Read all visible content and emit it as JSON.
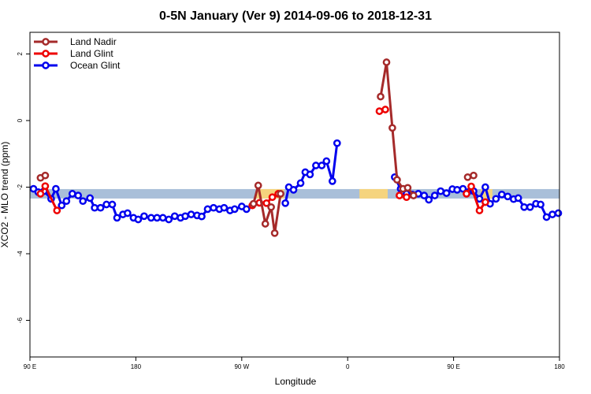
{
  "chart_data": {
    "type": "line",
    "title": "0-5N January (Ver 9)   2014-09-06 to 2018-12-31",
    "xlabel": "Longitude",
    "ylabel": "XCO2 - MLO trend (ppm)",
    "xlim": [
      90,
      540
    ],
    "ylim": [
      -7.1,
      2.65
    ],
    "x_ticks": [
      {
        "value": 90,
        "label": "90 E"
      },
      {
        "value": 180,
        "label": "180"
      },
      {
        "value": 270,
        "label": "90 W"
      },
      {
        "value": 360,
        "label": "0"
      },
      {
        "value": 450,
        "label": "90 E"
      },
      {
        "value": 540,
        "label": "180"
      }
    ],
    "y_ticks": [
      {
        "value": 2,
        "label": "2"
      },
      {
        "value": 0,
        "label": "0"
      },
      {
        "value": -2,
        "label": "-2"
      },
      {
        "value": -4,
        "label": "-4"
      },
      {
        "value": -6,
        "label": "-6"
      }
    ],
    "grid": false,
    "legend_position": "top-left",
    "bands": [
      {
        "x0": 90,
        "x1": 540,
        "y": -2.2,
        "color": "#a9bfd9"
      },
      {
        "x0": 282,
        "x1": 306,
        "y": -2.2,
        "color": "#f5d47e"
      },
      {
        "x0": 370,
        "x1": 394,
        "y": -2.2,
        "color": "#f5d47e"
      },
      {
        "x0": 473,
        "x1": 483,
        "y": -2.2,
        "color": "#f5d47e"
      }
    ],
    "series": [
      {
        "name": "Ocean Glint",
        "color": "#0000ee",
        "segments": [
          [
            [
              93,
              -2.05
            ],
            [
              97,
              -2.15
            ],
            [
              102,
              -2.12
            ],
            [
              108,
              -2.35
            ],
            [
              112,
              -2.05
            ],
            [
              117,
              -2.55
            ],
            [
              121,
              -2.42
            ],
            [
              126,
              -2.2
            ],
            [
              131,
              -2.25
            ],
            [
              135,
              -2.42
            ],
            [
              141,
              -2.33
            ],
            [
              145,
              -2.62
            ],
            [
              150,
              -2.62
            ],
            [
              155,
              -2.52
            ],
            [
              160,
              -2.52
            ],
            [
              164,
              -2.92
            ],
            [
              169,
              -2.82
            ],
            [
              173,
              -2.78
            ],
            [
              178,
              -2.92
            ],
            [
              182,
              -2.97
            ],
            [
              187,
              -2.87
            ],
            [
              193,
              -2.92
            ],
            [
              198,
              -2.92
            ],
            [
              203,
              -2.92
            ],
            [
              208,
              -2.97
            ],
            [
              213,
              -2.87
            ],
            [
              218,
              -2.92
            ],
            [
              222,
              -2.87
            ],
            [
              227,
              -2.82
            ],
            [
              232,
              -2.85
            ],
            [
              236,
              -2.88
            ],
            [
              241,
              -2.66
            ],
            [
              246,
              -2.62
            ],
            [
              251,
              -2.66
            ],
            [
              255,
              -2.62
            ],
            [
              260,
              -2.7
            ],
            [
              264,
              -2.66
            ],
            [
              270,
              -2.58
            ],
            [
              274,
              -2.66
            ]
          ],
          [
            [
              307,
              -2.48
            ],
            [
              310,
              -2.0
            ],
            [
              314,
              -2.08
            ],
            [
              320,
              -1.88
            ],
            [
              324,
              -1.55
            ],
            [
              328,
              -1.62
            ],
            [
              333,
              -1.35
            ],
            [
              338,
              -1.35
            ],
            [
              342,
              -1.22
            ],
            [
              347,
              -1.82
            ],
            [
              351,
              -0.68
            ]
          ],
          [
            [
              400,
              -1.7
            ],
            [
              405,
              -2.05
            ],
            [
              410,
              -2.2
            ],
            [
              415,
              -2.22
            ],
            [
              420,
              -2.2
            ],
            [
              425,
              -2.25
            ],
            [
              429,
              -2.38
            ],
            [
              434,
              -2.25
            ],
            [
              439,
              -2.12
            ],
            [
              444,
              -2.18
            ],
            [
              449,
              -2.06
            ],
            [
              453,
              -2.08
            ],
            [
              458,
              -2.05
            ],
            [
              462,
              -2.15
            ],
            [
              467,
              -2.12
            ],
            [
              472,
              -2.35
            ],
            [
              477,
              -2.0
            ],
            [
              481,
              -2.5
            ],
            [
              486,
              -2.35
            ],
            [
              491,
              -2.22
            ],
            [
              496,
              -2.28
            ],
            [
              501,
              -2.36
            ],
            [
              505,
              -2.33
            ],
            [
              510,
              -2.6
            ],
            [
              515,
              -2.6
            ],
            [
              520,
              -2.5
            ],
            [
              524,
              -2.52
            ],
            [
              529,
              -2.9
            ],
            [
              534,
              -2.82
            ],
            [
              539,
              -2.78
            ]
          ]
        ]
      },
      {
        "name": "Land Glint",
        "color": "#ee0000",
        "segments": [
          [
            [
              99,
              -2.2
            ],
            [
              103,
              -1.97
            ],
            [
              113,
              -2.7
            ]
          ],
          [
            [
              279,
              -2.55
            ],
            [
              285,
              -2.47
            ],
            [
              291,
              -2.48
            ],
            [
              296,
              -2.3
            ],
            [
              301,
              -2.2
            ]
          ],
          [
            [
              387,
              0.28
            ],
            [
              392,
              0.33
            ]
          ],
          [
            [
              404,
              -2.25
            ],
            [
              410,
              -2.3
            ]
          ],
          [
            [
              461,
              -2.2
            ],
            [
              465,
              -1.98
            ],
            [
              472,
              -2.7
            ],
            [
              477,
              -2.45
            ]
          ]
        ]
      },
      {
        "name": "Land Nadir",
        "color": "#a52a2a",
        "segments": [
          [
            [
              99,
              -1.72
            ],
            [
              103,
              -1.65
            ]
          ],
          [
            [
              280,
              -2.5
            ],
            [
              284,
              -1.95
            ],
            [
              290,
              -3.1
            ],
            [
              295,
              -2.6
            ],
            [
              298,
              -3.38
            ],
            [
              303,
              -2.2
            ]
          ],
          [
            [
              388,
              0.72
            ],
            [
              393,
              1.75
            ],
            [
              398,
              -0.22
            ],
            [
              402,
              -1.78
            ],
            [
              407,
              -2.05
            ],
            [
              411,
              -2.02
            ],
            [
              416,
              -2.25
            ]
          ],
          [
            [
              462,
              -1.7
            ],
            [
              467,
              -1.65
            ]
          ]
        ]
      }
    ],
    "legend": [
      "Land Nadir",
      "Land Glint",
      "Ocean Glint"
    ]
  }
}
